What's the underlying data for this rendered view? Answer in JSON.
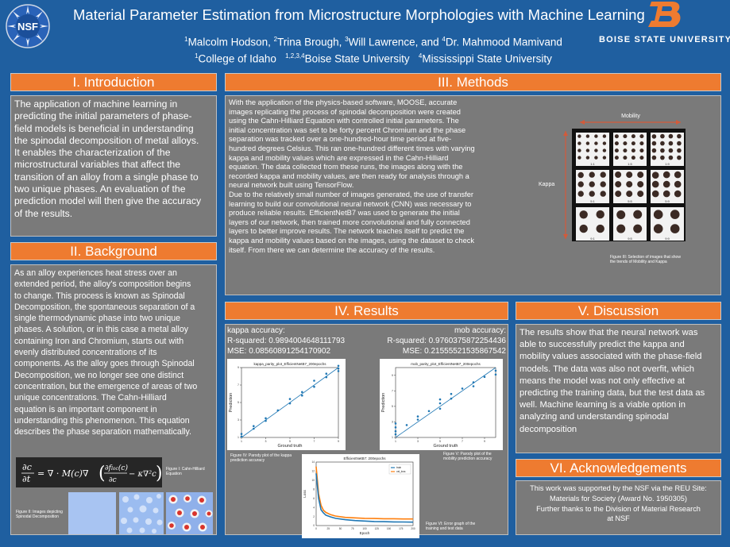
{
  "header": {
    "title": "Material Parameter Estimation from Microstructure Morphologies with Machine Learning",
    "authors": [
      {
        "sup": "1",
        "name": "Malcolm Hodson, "
      },
      {
        "sup": "2",
        "name": "Trina Brough, "
      },
      {
        "sup": "3",
        "name": "Will Lawrence, and "
      },
      {
        "sup": "4",
        "name": "Dr. Mahmood Mamivand"
      }
    ],
    "affiliations": [
      {
        "sup": "1",
        "name": "College of Idaho   "
      },
      {
        "sup": "1,2,3,4",
        "name": "Boise State University   "
      },
      {
        "sup": "4",
        "name": "Mississippi State University"
      }
    ],
    "nsf_logo_text": "NSF",
    "bsu_text": "BOISE STATE UNIVERSITY"
  },
  "intro": {
    "heading": "I. Introduction",
    "lines": [
      "The application of machine learning in",
      "predicting the initial parameters of phase-",
      "field models is beneficial in understanding",
      "the spinodal decomposition of metal alloys.",
      "It enables the characterization of the",
      "microstructural variables that affect the",
      "transition of an alloy from a single phase to",
      "two unique phases. An evaluation of the",
      "prediction model will then give the accuracy",
      "of the results."
    ]
  },
  "background": {
    "heading": "II. Background",
    "lines": [
      "As an alloy experiences heat stress over an",
      "extended period, the alloy's composition begins",
      "to change. This process is known as Spinodal",
      "Decomposition, the spontaneous separation of a",
      "single thermodynamic phase into two unique",
      "phases. A solution, or in this case a metal alloy",
      "containing Iron and Chromium, starts out with",
      "evenly distributed concentrations of its",
      "components. As the alloy goes through Spinodal",
      "Decomposition, we no longer see one distinct",
      "concentration, but the emergence of areas of two",
      "unique concentrations. The Cahn-Hilliard",
      "equation is an important component in",
      "understanding this phenomenon. This equation",
      "describes the phase separation mathematically."
    ],
    "fig1_caption": "Figure I: Cahn-Hilliard Equation",
    "fig2_caption": "Figure II: Images depicting Spinodal Decomposition"
  },
  "methods": {
    "heading": "III. Methods",
    "lines": [
      "With the application of the physics-based software, MOOSE, accurate",
      "images replicating the process of spinodal decomposition were created",
      "using the Cahn-Hilliard Equation with controlled initial parameters. The",
      "initial concentration was set to be forty percent Chromium and the phase",
      "separation was tracked over a one-hundred-hour time period at five-",
      "hundred degrees Celsius. This ran one-hundred different times with varying",
      "kappa and mobility values which are expressed in the Cahn-Hilliard",
      "equation. The data collected from these runs, the images along with the",
      "recorded kappa and mobility values, are then ready for analysis through a",
      "neural network built using TensorFlow.",
      "Due to the relatively small number of images generated, the use of transfer",
      "learning to build our convolutional neural network (CNN) was necessary to",
      "produce reliable results. EfficientNetB7 was used to generate the initial",
      "layers of our network, then trained more convolutional and fully connected",
      "layers to better improve results. The network teaches itself to predict the",
      "kappa and mobility values based on the images, using the dataset to check",
      "itself. From there we can determine the accuracy of the results."
    ],
    "mobility_label": "Mobility",
    "kappa_label": "Kappa",
    "grid_labels": [
      "1:1",
      "1:5",
      "1:9",
      "5:1",
      "5:5",
      "5:9",
      "9:1",
      "9:5",
      "9:9"
    ],
    "fig3_caption": "Figure III: Selection of images that show the trends of Mobility and Kappa"
  },
  "results": {
    "heading": "IV. Results",
    "kappa_acc_label": "kappa accuracy:",
    "kappa_r2": "R-squared: 0.9894004648111793",
    "kappa_mse": "MSE: 0.08560891254170902",
    "mob_acc_label": "mob accuracy:",
    "mob_r2": "R-squared: 0.9760375872254436",
    "mob_mse": "MSE: 0.21555521535867542",
    "plot1_title": "kappa_parity_plot_EfficientNetB7_200epochs",
    "plot2_title": "mob_parity_plot_EfficientNetB7_200epochs",
    "plot3_title": "EfficientNetB7: 200epochs",
    "xlabel": "Ground truth",
    "ylabel": "Prediction",
    "epoch_label": "Epoch",
    "loss_label": "Loss",
    "legend_train": "train",
    "legend_test": "val_loss",
    "fig4_caption": "Figure IV: Parody plot of the kappa prediction accuracy",
    "fig5_caption": "Figure V: Parody plot of the mobility prediction accuracy",
    "fig6_caption": "Figure VI: Error graph of the training and test data"
  },
  "discussion": {
    "heading": "V. Discussion",
    "lines": [
      "The results show that the neural network was",
      "able to successfully predict the kappa and",
      "mobility values associated with the phase-field",
      "models. The data was also not overfit, which",
      "means the model was not only effective at",
      "predicting the training data, but the test data as",
      "well. Machine learning is a viable option in",
      "analyzing and understanding spinodal",
      "decomposition"
    ]
  },
  "acknowledgements": {
    "heading": "VI. Acknowledgements",
    "lines": [
      "This work was supported by the NSF via the REU Site:",
      "Materials for Society (Award No. 1950305)",
      "Further thanks to the Division of Material Research",
      "at NSF"
    ]
  },
  "chart_data": [
    {
      "type": "scatter",
      "title": "kappa_parity_plot_EfficientNetB7_200epochs",
      "xlabel": "Ground truth",
      "ylabel": "Prediction",
      "xlim": [
        1,
        9
      ],
      "ylim": [
        1,
        9
      ],
      "x": [
        1,
        1,
        2,
        2,
        3,
        3,
        4,
        5,
        5,
        6,
        6,
        7,
        7,
        8,
        8,
        9,
        9,
        9
      ],
      "y": [
        1.1,
        1.4,
        2.0,
        2.3,
        2.9,
        3.2,
        4.1,
        4.9,
        5.4,
        6.2,
        5.8,
        7.5,
        6.8,
        7.9,
        8.3,
        8.6,
        8.9,
        9.2
      ],
      "reference_line": true
    },
    {
      "type": "scatter",
      "title": "mob_parity_plot_EfficientNetB7_200epochs",
      "xlabel": "Ground truth",
      "ylabel": "Prediction",
      "xlim": [
        1,
        10
      ],
      "ylim": [
        1,
        10
      ],
      "x": [
        1,
        1,
        1,
        1,
        2,
        3,
        3,
        4,
        5,
        5,
        5,
        6,
        6,
        7,
        8,
        8,
        9,
        10,
        10
      ],
      "y": [
        1.4,
        1.8,
        2.3,
        2.8,
        2.6,
        3.3,
        3.7,
        4.4,
        4.7,
        5.4,
        5.9,
        6.0,
        6.6,
        7.3,
        8.1,
        7.6,
        8.8,
        9.6,
        9.1
      ],
      "reference_line": true
    },
    {
      "type": "line",
      "title": "EfficientNetB7: 200epochs",
      "xlabel": "Epoch",
      "ylabel": "Loss",
      "xlim": [
        0,
        200
      ],
      "ylim": [
        0,
        14
      ],
      "series": [
        {
          "name": "train",
          "color": "#1f77b4",
          "x": [
            0,
            5,
            10,
            15,
            20,
            30,
            40,
            60,
            80,
            100,
            120,
            140,
            160,
            180,
            200
          ],
          "y": [
            11.5,
            6,
            3.5,
            2.8,
            2.3,
            1.9,
            1.6,
            1.3,
            1.1,
            1.0,
            0.9,
            0.85,
            0.8,
            0.78,
            0.75
          ]
        },
        {
          "name": "val_loss",
          "color": "#ff7f0e",
          "x": [
            0,
            5,
            10,
            15,
            20,
            30,
            40,
            60,
            80,
            100,
            120,
            140,
            160,
            180,
            200
          ],
          "y": [
            13,
            7,
            4.5,
            3.4,
            2.9,
            2.4,
            2.1,
            1.8,
            1.7,
            1.6,
            1.55,
            1.5,
            1.5,
            1.45,
            1.45
          ]
        }
      ]
    }
  ]
}
